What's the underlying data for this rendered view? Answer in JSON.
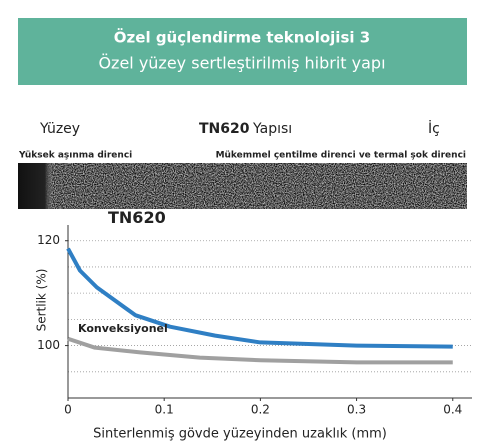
{
  "header": {
    "title": "Özel güçlendirme teknolojisi 3",
    "subtitle": "Özel yüzey sertleştirilmiş hibrit yapı"
  },
  "structure": {
    "left": "Yüzey",
    "product": "TN620",
    "label": "Yapısı",
    "right": "İç",
    "left_note": "Yüksek aşınma direnci",
    "right_note": "Mükemmel çentilme direnci ve termal şok direnci"
  },
  "chart_data": {
    "type": "line",
    "x_label": "Sinterlenmiş gövde yüzeyinden uzaklık (mm)",
    "y_label": "Sertlik (%)",
    "xlim": [
      0,
      0.42
    ],
    "ylim": [
      90,
      123
    ],
    "xticks": [
      0,
      0.1,
      0.2,
      0.3,
      0.4
    ],
    "yticks": [
      100,
      120
    ],
    "ygrid": [
      95,
      100,
      105,
      110,
      115,
      120
    ],
    "series": [
      {
        "name": "TN620",
        "color": "#2f7fc4",
        "x": [
          0,
          0.0125,
          0.03,
          0.07,
          0.106,
          0.153,
          0.2,
          0.3,
          0.4
        ],
        "values": [
          118.5,
          114.3,
          111.1,
          105.8,
          103.6,
          101.9,
          100.6,
          100,
          99.8
        ]
      },
      {
        "name": "Konveksiyonel",
        "color": "#a0a0a0",
        "x": [
          0,
          0.028,
          0.075,
          0.137,
          0.2,
          0.3,
          0.4
        ],
        "values": [
          101.3,
          99.6,
          98.7,
          97.7,
          97.2,
          96.8,
          96.8
        ]
      }
    ]
  }
}
